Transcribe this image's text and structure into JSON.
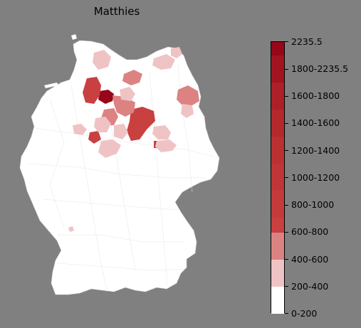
{
  "title": "Matthies",
  "legend": {
    "ticks": [
      "2235.5",
      "1800-2235.5",
      "1600-1800",
      "1400-1600",
      "1200-1400",
      "1000-1200",
      "800-1000",
      "600-800",
      "400-600",
      "200-400",
      "0-200"
    ],
    "bins": [
      {
        "range": "0-200",
        "color": "#ffffff"
      },
      {
        "range": "200-400",
        "color": "#efc3c4"
      },
      {
        "range": "400-600",
        "color": "#dc8283"
      },
      {
        "range": "600-800",
        "color": "#c8403f"
      },
      {
        "range": "800-1000",
        "color": "#c53a3a"
      },
      {
        "range": "1000-1200",
        "color": "#c03537"
      },
      {
        "range": "1200-1400",
        "color": "#bb3031"
      },
      {
        "range": "1400-1600",
        "color": "#b5282c"
      },
      {
        "range": "1600-1800",
        "color": "#ae1f27"
      },
      {
        "range": "1800-2235.5",
        "color": "#a31421"
      },
      {
        "range": "2235.5+",
        "color": "#98061a"
      }
    ]
  },
  "map": {
    "background": "#808080",
    "base_fill": "#ffffff",
    "border_color": "#d9d9d9",
    "highlighted_regions": [
      {
        "name": "region-a",
        "bin": "1800-2235.5"
      },
      {
        "name": "region-b",
        "bin": "600-800"
      },
      {
        "name": "region-c",
        "bin": "600-800"
      },
      {
        "name": "region-d",
        "bin": "400-600"
      },
      {
        "name": "region-e",
        "bin": "400-600"
      },
      {
        "name": "region-f",
        "bin": "200-400"
      },
      {
        "name": "region-g",
        "bin": "200-400"
      },
      {
        "name": "region-h",
        "bin": "200-400"
      }
    ]
  }
}
